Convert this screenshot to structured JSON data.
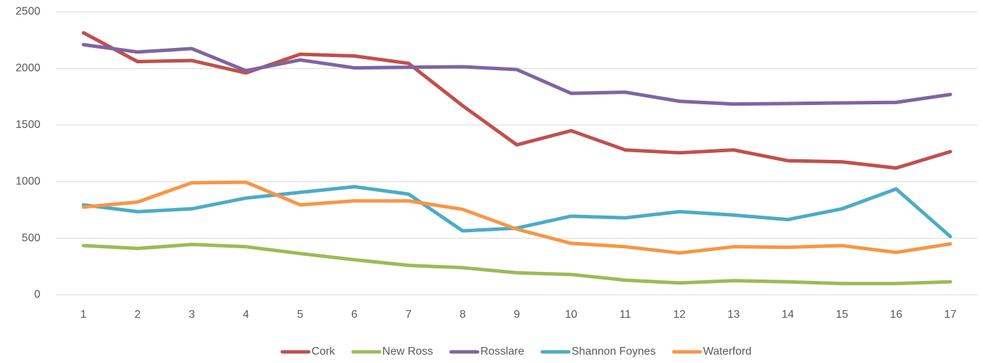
{
  "chart_data": {
    "type": "line",
    "categories": [
      "1",
      "2",
      "3",
      "4",
      "5",
      "6",
      "7",
      "8",
      "9",
      "10",
      "11",
      "12",
      "13",
      "14",
      "15",
      "16",
      "17"
    ],
    "series": [
      {
        "name": "Cork",
        "color": "#c0504d",
        "values": [
          2315,
          2060,
          2070,
          1960,
          2125,
          2110,
          2045,
          1670,
          1325,
          1450,
          1280,
          1255,
          1280,
          1185,
          1175,
          1120,
          1265
        ]
      },
      {
        "name": "New Ross",
        "color": "#9bbb59",
        "values": [
          435,
          410,
          445,
          425,
          365,
          310,
          260,
          240,
          195,
          180,
          130,
          105,
          125,
          115,
          100,
          100,
          115
        ]
      },
      {
        "name": "Rosslare",
        "color": "#8064a2",
        "values": [
          2210,
          2145,
          2175,
          1980,
          2075,
          2005,
          2010,
          2015,
          1990,
          1780,
          1790,
          1710,
          1685,
          1690,
          1695,
          1700,
          1770
        ]
      },
      {
        "name": "Shannon Foynes",
        "color": "#4bacc6",
        "values": [
          795,
          735,
          760,
          855,
          905,
          955,
          890,
          565,
          590,
          695,
          680,
          735,
          705,
          665,
          760,
          935,
          515
        ]
      },
      {
        "name": "Waterford",
        "color": "#f79646",
        "values": [
          775,
          820,
          990,
          995,
          795,
          830,
          830,
          755,
          580,
          455,
          425,
          370,
          425,
          420,
          435,
          375,
          450
        ]
      }
    ],
    "ylim": [
      0,
      2500
    ],
    "yticks": [
      0,
      500,
      1000,
      1500,
      2000,
      2500
    ],
    "grid": true,
    "legend": "bottom"
  }
}
